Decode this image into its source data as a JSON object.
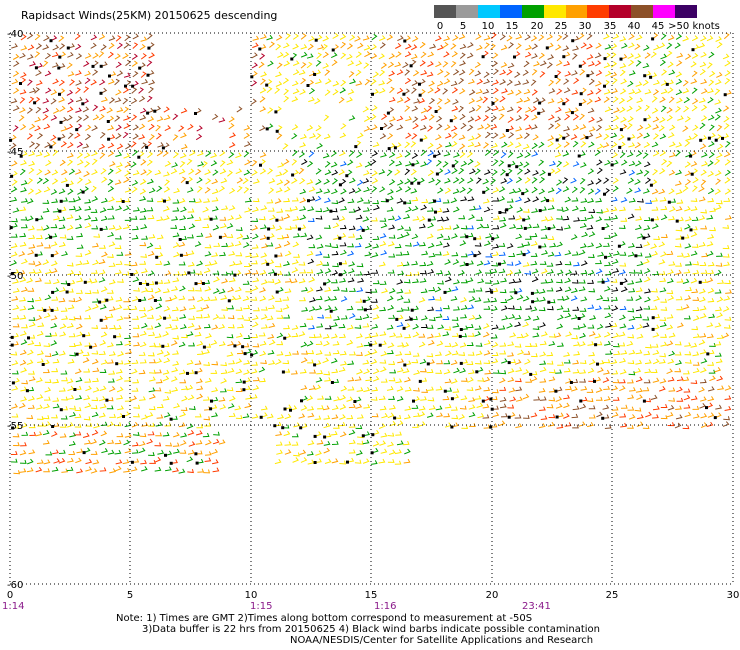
{
  "header": {
    "title": "Rapidsact Winds(25KM) 20150625 descending"
  },
  "legend": {
    "labels": [
      "0",
      "5",
      "10",
      "15",
      "20",
      "25",
      "30",
      "35",
      "40",
      "45",
      ">50 knots"
    ],
    "colors": [
      "#555555",
      "#9a9a9a",
      "#00c8ff",
      "#0064ff",
      "#00a000",
      "#ffe800",
      "#ffa000",
      "#ff3c00",
      "#b4002a",
      "#8c5028",
      "#ff00ff",
      "#3c0064"
    ]
  },
  "map": {
    "x_axis": {
      "ticks": [
        "0",
        "5",
        "10",
        "15",
        "20",
        "25",
        "30"
      ]
    },
    "y_axis": {
      "ticks": [
        "-40",
        "-45",
        "-50",
        "-55",
        "-60"
      ]
    },
    "time_labels": [
      "1:14",
      "1:15",
      "1:16",
      "23:41"
    ]
  },
  "notes": [
    "Note: 1) Times are GMT 2)Times along bottom correspond to measurement at -50S",
    "3)Data buffer is 22 hrs from 20150625 4) Black wind barbs indicate possible contamination",
    "NOAA/NESDIS/Center for Satellite Applications and Research"
  ]
}
